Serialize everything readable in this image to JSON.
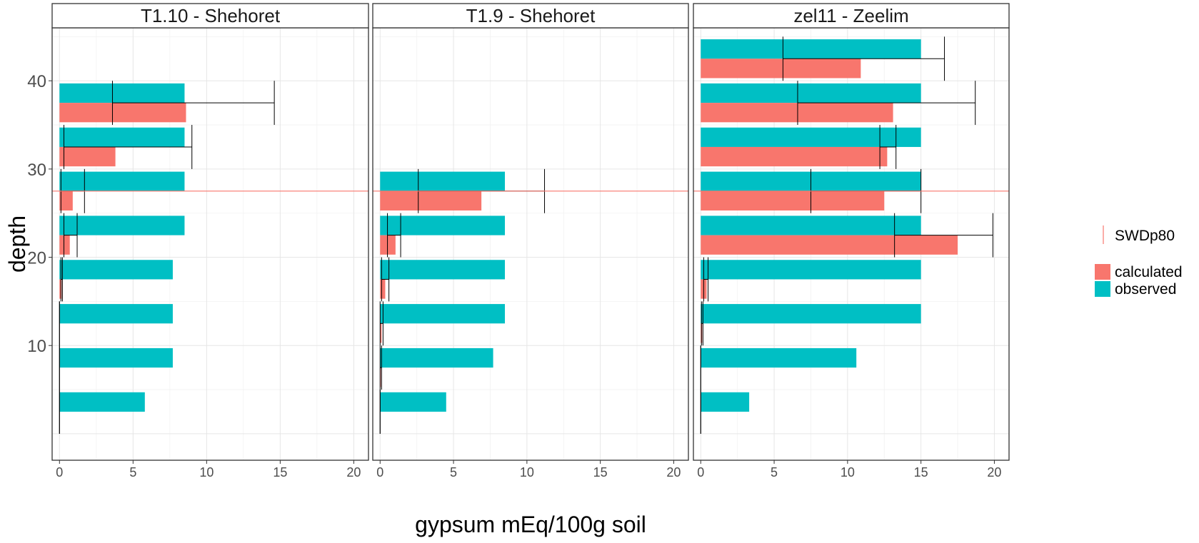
{
  "chart_data": {
    "type": "bar",
    "orientation": "horizontal",
    "xlabel": "gypsum mEq/100g soil",
    "ylabel": "depth",
    "xlim": [
      -0.5,
      21
    ],
    "ylim": [
      46,
      -3
    ],
    "x_ticks": [
      0,
      5,
      10,
      15,
      20
    ],
    "y_ticks": [
      10,
      20,
      30,
      40
    ],
    "grid": true,
    "legend": {
      "position": "right",
      "line_entry": "SWDp80",
      "fill_entries": [
        {
          "label": "calculated",
          "color": "#F8766D"
        },
        {
          "label": "observed",
          "color": "#00BFC4"
        }
      ]
    },
    "reference_line": {
      "name": "SWDp80",
      "depth": 27.5,
      "color": "#F8766D"
    },
    "colors": {
      "calculated": "#F8766D",
      "observed": "#00BFC4"
    },
    "panels": [
      {
        "title": "T1.10 - Shehoret",
        "depths": [
          2.5,
          7.5,
          12.5,
          17.5,
          22.5,
          27.5,
          32.5,
          37.5
        ],
        "observed": [
          5.8,
          7.7,
          7.7,
          7.7,
          8.5,
          8.5,
          8.5,
          8.5
        ],
        "calculated": [
          0,
          0,
          0,
          0.15,
          0.7,
          0.9,
          3.8,
          8.6
        ],
        "calc_err_low": [
          0,
          0,
          0,
          0.1,
          0.3,
          0.1,
          0.3,
          3.6
        ],
        "calc_err_high": [
          0,
          0,
          0,
          0.2,
          1.2,
          1.7,
          9.0,
          14.6
        ]
      },
      {
        "title": "T1.9 - Shehoret",
        "depths": [
          2.5,
          7.5,
          12.5,
          17.5,
          22.5,
          27.5
        ],
        "observed": [
          4.5,
          7.7,
          8.5,
          8.5,
          8.5,
          8.5
        ],
        "calculated": [
          0,
          0.05,
          0.1,
          0.35,
          1.05,
          6.9
        ],
        "calc_err_low": [
          0,
          0,
          0,
          0.1,
          0.5,
          2.6
        ],
        "calc_err_high": [
          0,
          0.1,
          0.2,
          0.6,
          1.4,
          11.2
        ]
      },
      {
        "title": "zel11 - Zeelim",
        "depths": [
          2.5,
          7.5,
          12.5,
          17.5,
          22.5,
          27.5,
          32.5,
          37.5,
          42.5
        ],
        "observed": [
          3.3,
          10.6,
          15,
          15,
          15,
          15,
          15,
          15,
          15
        ],
        "calculated": [
          0,
          0,
          0.1,
          0.4,
          17.5,
          12.5,
          12.7,
          13.1,
          10.9
        ],
        "calc_err_low": [
          0,
          0,
          0.05,
          0.2,
          13.2,
          7.5,
          12.2,
          6.6,
          5.6
        ],
        "calc_err_high": [
          0,
          0,
          0.15,
          0.5,
          19.9,
          15,
          13.3,
          18.7,
          16.6
        ]
      }
    ]
  }
}
